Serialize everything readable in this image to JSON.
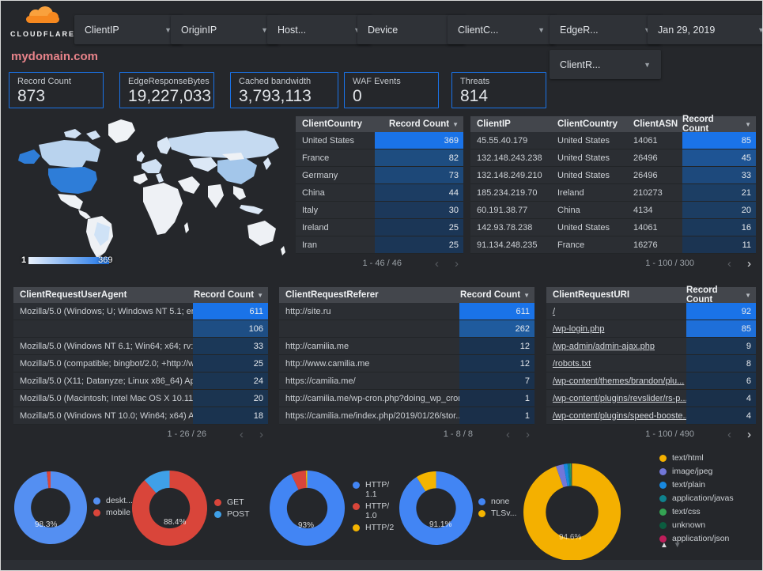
{
  "header": {
    "logo_brand": "CLOUDFLARE",
    "filters": [
      {
        "label": "ClientIP"
      },
      {
        "label": "OriginIP"
      },
      {
        "label": "Host..."
      },
      {
        "label": "Device"
      },
      {
        "label": "ClientC..."
      },
      {
        "label": "EdgeR..."
      }
    ],
    "date_filter": {
      "label": "Jan 29, 2019"
    },
    "secondary_filter": {
      "label": "ClientR..."
    }
  },
  "title": "mydomain.com",
  "scorecards": [
    {
      "label": "Record Count",
      "value": "873"
    },
    {
      "label": "EdgeResponseBytes",
      "value": "19,227,033"
    },
    {
      "label": "Cached bandwidth",
      "value": "3,793,113"
    },
    {
      "label": "WAF Events",
      "value": "0"
    },
    {
      "label": "Threats",
      "value": "814"
    }
  ],
  "map": {
    "legend_min": "1",
    "legend_max": "369"
  },
  "tables": {
    "clientCountry": {
      "title": "ClientCountry",
      "count_header": "Record Count",
      "rows": [
        {
          "name": "United States",
          "count": "369",
          "heat": "#1a73e8"
        },
        {
          "name": "France",
          "count": "82",
          "heat": "#1e4d80"
        },
        {
          "name": "Germany",
          "count": "73",
          "heat": "#1d4878"
        },
        {
          "name": "China",
          "count": "44",
          "heat": "#1c3d63"
        },
        {
          "name": "Italy",
          "count": "30",
          "heat": "#1c385a"
        },
        {
          "name": "Ireland",
          "count": "25",
          "heat": "#1b3656"
        },
        {
          "name": "Iran",
          "count": "25",
          "heat": "#1b3656"
        }
      ],
      "pagination": "1 - 46 / 46",
      "prev_color": "#5a5e63",
      "next_color": "#5a5e63"
    },
    "clientIP": {
      "headers": {
        "ip": "ClientIP",
        "country": "ClientCountry",
        "asn": "ClientASN",
        "count": "Record Count"
      },
      "rows": [
        {
          "ip": "45.55.40.179",
          "country": "United States",
          "asn": "14061",
          "count": "85",
          "heat": "#1a73e8"
        },
        {
          "ip": "132.148.243.238",
          "country": "United States",
          "asn": "26496",
          "count": "45",
          "heat": "#1e5494"
        },
        {
          "ip": "132.148.249.210",
          "country": "United States",
          "asn": "26496",
          "count": "33",
          "heat": "#1d497c"
        },
        {
          "ip": "185.234.219.70",
          "country": "Ireland",
          "asn": "210273",
          "count": "21",
          "heat": "#1c3e64"
        },
        {
          "ip": "60.191.38.77",
          "country": "China",
          "asn": "4134",
          "count": "20",
          "heat": "#1c3d62"
        },
        {
          "ip": "142.93.78.238",
          "country": "United States",
          "asn": "14061",
          "count": "16",
          "heat": "#1b395b"
        },
        {
          "ip": "91.134.248.235",
          "country": "France",
          "asn": "16276",
          "count": "11",
          "heat": "#1b3452"
        }
      ],
      "pagination": "1 - 100 / 300",
      "prev_color": "#5a5e63",
      "next_color": "#e8eaed"
    },
    "userAgent": {
      "title": "ClientRequestUserAgent",
      "count_header": "Record Count",
      "rows": [
        {
          "name": "Mozilla/5.0 (Windows; U; Windows NT 5.1; en-U...",
          "count": "611",
          "heat": "#1a73e8"
        },
        {
          "name": "",
          "count": "106",
          "heat": "#1e4e84"
        },
        {
          "name": "Mozilla/5.0 (Windows NT 6.1; Win64; x64; rv:64...",
          "count": "33",
          "heat": "#1b3858"
        },
        {
          "name": "Mozilla/5.0 (compatible; bingbot/2.0; +http://w...",
          "count": "25",
          "heat": "#1b3553"
        },
        {
          "name": "Mozilla/5.0 (X11; Datanyze; Linux x86_64) Appl...",
          "count": "24",
          "heat": "#1b3552"
        },
        {
          "name": "Mozilla/5.0 (Macintosh; Intel Mac OS X 10.11; r...",
          "count": "20",
          "heat": "#1b3450"
        },
        {
          "name": "Mozilla/5.0 (Windows NT 10.0; Win64; x64) App...",
          "count": "18",
          "heat": "#1a334f"
        }
      ],
      "pagination": "1 - 26 / 26",
      "prev_color": "#5a5e63",
      "next_color": "#5a5e63"
    },
    "referer": {
      "title": "ClientRequestReferer",
      "count_header": "Record Count",
      "rows": [
        {
          "name": "http://site.ru",
          "count": "611",
          "heat": "#1a73e8"
        },
        {
          "name": "",
          "count": "262",
          "heat": "#1f5b9e"
        },
        {
          "name": "http://camilia.me",
          "count": "12",
          "heat": "#1a3350"
        },
        {
          "name": "http://www.camilia.me",
          "count": "12",
          "heat": "#1a3350"
        },
        {
          "name": "https://camilia.me/",
          "count": "7",
          "heat": "#1a314c"
        },
        {
          "name": "http://camilia.me/wp-cron.php?doing_wp_cron...",
          "count": "1",
          "heat": "#1a2f49"
        },
        {
          "name": "https://camilia.me/index.php/2019/01/26/stor...",
          "count": "1",
          "heat": "#1a2f49"
        }
      ],
      "pagination": "1 - 8 / 8",
      "prev_color": "#5a5e63",
      "next_color": "#5a5e63"
    },
    "uri": {
      "title": "ClientRequestURI",
      "count_header": "Record Count",
      "rows": [
        {
          "name": "/",
          "count": "92",
          "heat": "#1a73e8"
        },
        {
          "name": "/wp-login.php",
          "count": "85",
          "heat": "#1e6fd9"
        },
        {
          "name": "/wp-admin/admin-ajax.php",
          "count": "9",
          "heat": "#1b3655"
        },
        {
          "name": "/robots.txt",
          "count": "8",
          "heat": "#1b3451"
        },
        {
          "name": "/wp-content/themes/brandon/plu...",
          "count": "6",
          "heat": "#1a324d"
        },
        {
          "name": "/wp-content/plugins/revslider/rs-p...",
          "count": "4",
          "heat": "#1a304a"
        },
        {
          "name": "/wp-content/plugins/speed-booste...",
          "count": "4",
          "heat": "#1a304a"
        }
      ],
      "pagination": "1 - 100 / 490",
      "prev_color": "#5a5e63",
      "next_color": "#e8eaed"
    }
  },
  "donuts": [
    {
      "name": "device-type",
      "center_label": "98.3%",
      "slices": [
        {
          "label": "deskt...",
          "value": 98.3,
          "color": "#548ff2"
        },
        {
          "label": "mobile",
          "value": 1.7,
          "color": "#d9453a"
        }
      ]
    },
    {
      "name": "request-method",
      "center_label": "88.4%",
      "slices": [
        {
          "label": "GET",
          "value": 88.4,
          "color": "#d9453a"
        },
        {
          "label": "POST",
          "value": 11.6,
          "color": "#3fa0e8"
        }
      ]
    },
    {
      "name": "http-version",
      "center_label": "93%",
      "slices": [
        {
          "label": "HTTP/\n1.1",
          "value": 93,
          "color": "#4285f4"
        },
        {
          "label": "HTTP/\n1.0",
          "value": 6.4,
          "color": "#d9453a"
        },
        {
          "label": "HTTP/2",
          "value": 0.6,
          "color": "#f4b400"
        }
      ]
    },
    {
      "name": "tls-version",
      "center_label": "91.1%",
      "slices": [
        {
          "label": "none",
          "value": 91.1,
          "color": "#4285f4"
        },
        {
          "label": "TLSv...",
          "value": 8.9,
          "color": "#f4b400"
        }
      ]
    },
    {
      "name": "content-type",
      "center_label": "94.6%",
      "slices": [
        {
          "label": "text/html",
          "value": 94.6,
          "color": "#f4b000"
        },
        {
          "label": "image/jpeg",
          "value": 2.6,
          "color": "#7277d9"
        },
        {
          "label": "text/plain",
          "value": 1.3,
          "color": "#1889e0"
        },
        {
          "label": "application/javascri...",
          "value": 0.8,
          "color": "#0f828e"
        },
        {
          "label": "text/css",
          "value": 0.4,
          "color": "#34a353"
        },
        {
          "label": "unknown",
          "value": 0.2,
          "color": "#0b5c3f"
        },
        {
          "label": "application/json",
          "value": 0.1,
          "color": "#bf1e5b"
        }
      ]
    }
  ],
  "legend_sort": {
    "up": "▲",
    "down": "▼"
  }
}
